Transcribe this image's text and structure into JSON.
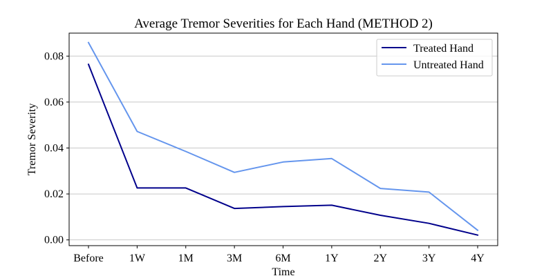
{
  "chart_data": {
    "type": "line",
    "title": "Average Tremor Severities for Each Hand (METHOD 2)",
    "xlabel": "Time",
    "ylabel": "Tremor Severity",
    "categories": [
      "Before",
      "1W",
      "1M",
      "3M",
      "6M",
      "1Y",
      "2Y",
      "3Y",
      "4Y"
    ],
    "ylim": [
      -0.0025,
      0.09
    ],
    "yticks": [
      0.0,
      0.02,
      0.04,
      0.06,
      0.08
    ],
    "ytick_labels": [
      "0.00",
      "0.02",
      "0.04",
      "0.06",
      "0.08"
    ],
    "grid": "horizontal",
    "legend_position": "top-right",
    "series": [
      {
        "name": "Treated Hand",
        "color": "#00008b",
        "values": [
          0.0764,
          0.0226,
          0.0226,
          0.0137,
          0.0145,
          0.0151,
          0.0107,
          0.0072,
          0.0021
        ]
      },
      {
        "name": "Untreated Hand",
        "color": "#6495ed",
        "values": [
          0.0859,
          0.0472,
          0.0385,
          0.0294,
          0.0339,
          0.0354,
          0.0224,
          0.0208,
          0.0042
        ]
      }
    ]
  }
}
